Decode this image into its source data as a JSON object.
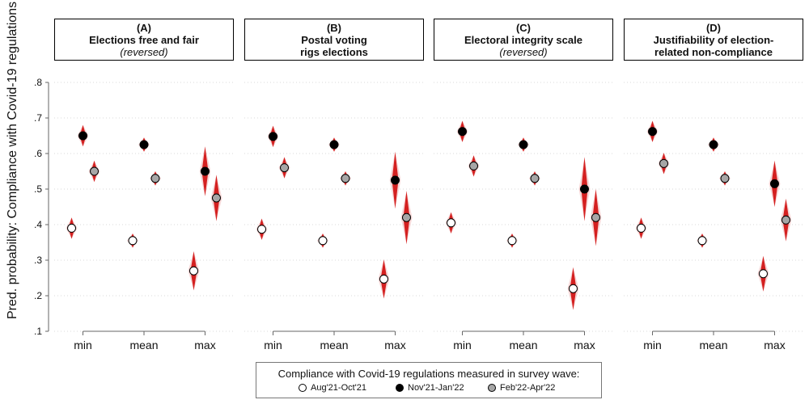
{
  "y_axis_label": "Pred. probability: Compliance with Covid-19 regulations",
  "panels": [
    {
      "letter": "(A)",
      "line1": "Elections free and fair",
      "line2": "(reversed)",
      "line2_italic": true
    },
    {
      "letter": "(B)",
      "line1": "Postal voting",
      "line2": "rigs elections",
      "line2_italic": false
    },
    {
      "letter": "(C)",
      "line1": "Electoral integrity scale",
      "line2": "(reversed)",
      "line2_italic": true
    },
    {
      "letter": "(D)",
      "line1": "Justifiability of election-",
      "line2": "related non-compliance",
      "line2_italic": false
    }
  ],
  "legend": {
    "title": "Compliance with Covid-19 regulations measured in survey wave:",
    "items": [
      {
        "label": "Aug'21-Oct'21",
        "color": "#ffffff"
      },
      {
        "label": "Nov'21-Jan'22",
        "color": "#000000"
      },
      {
        "label": "Feb'22-Apr'22",
        "color": "#a6a6a6"
      }
    ]
  },
  "chart_data": {
    "type": "scatter",
    "ylim": [
      0.1,
      0.8
    ],
    "yticks": [
      ".1",
      ".2",
      ".3",
      ".4",
      ".5",
      ".6",
      ".7",
      ".8"
    ],
    "ytick_values": [
      0.1,
      0.2,
      0.3,
      0.4,
      0.5,
      0.6,
      0.7,
      0.8
    ],
    "categories": [
      "min",
      "mean",
      "max"
    ],
    "series_names": [
      "Aug'21-Oct'21",
      "Nov'21-Jan'22",
      "Feb'22-Apr'22"
    ],
    "series_colors": [
      "#ffffff",
      "#000000",
      "#a6a6a6"
    ],
    "panels": [
      {
        "values": [
          [
            0.39,
            0.65,
            0.55
          ],
          [
            0.355,
            0.625,
            0.53
          ],
          [
            0.27,
            0.55,
            0.475
          ]
        ],
        "ci": [
          [
            0.03,
            0.03,
            0.03
          ],
          [
            0.02,
            0.02,
            0.02
          ],
          [
            0.055,
            0.07,
            0.065
          ]
        ]
      },
      {
        "values": [
          [
            0.387,
            0.648,
            0.56
          ],
          [
            0.355,
            0.625,
            0.53
          ],
          [
            0.247,
            0.525,
            0.42
          ]
        ],
        "ci": [
          [
            0.03,
            0.03,
            0.03
          ],
          [
            0.02,
            0.02,
            0.02
          ],
          [
            0.055,
            0.08,
            0.075
          ]
        ]
      },
      {
        "values": [
          [
            0.405,
            0.662,
            0.565
          ],
          [
            0.355,
            0.625,
            0.53
          ],
          [
            0.22,
            0.5,
            0.42
          ]
        ],
        "ci": [
          [
            0.03,
            0.03,
            0.03
          ],
          [
            0.02,
            0.02,
            0.02
          ],
          [
            0.06,
            0.09,
            0.08
          ]
        ]
      },
      {
        "values": [
          [
            0.39,
            0.662,
            0.572
          ],
          [
            0.355,
            0.625,
            0.53
          ],
          [
            0.262,
            0.515,
            0.413
          ]
        ],
        "ci": [
          [
            0.03,
            0.03,
            0.03
          ],
          [
            0.02,
            0.02,
            0.02
          ],
          [
            0.05,
            0.065,
            0.06
          ]
        ]
      }
    ]
  }
}
